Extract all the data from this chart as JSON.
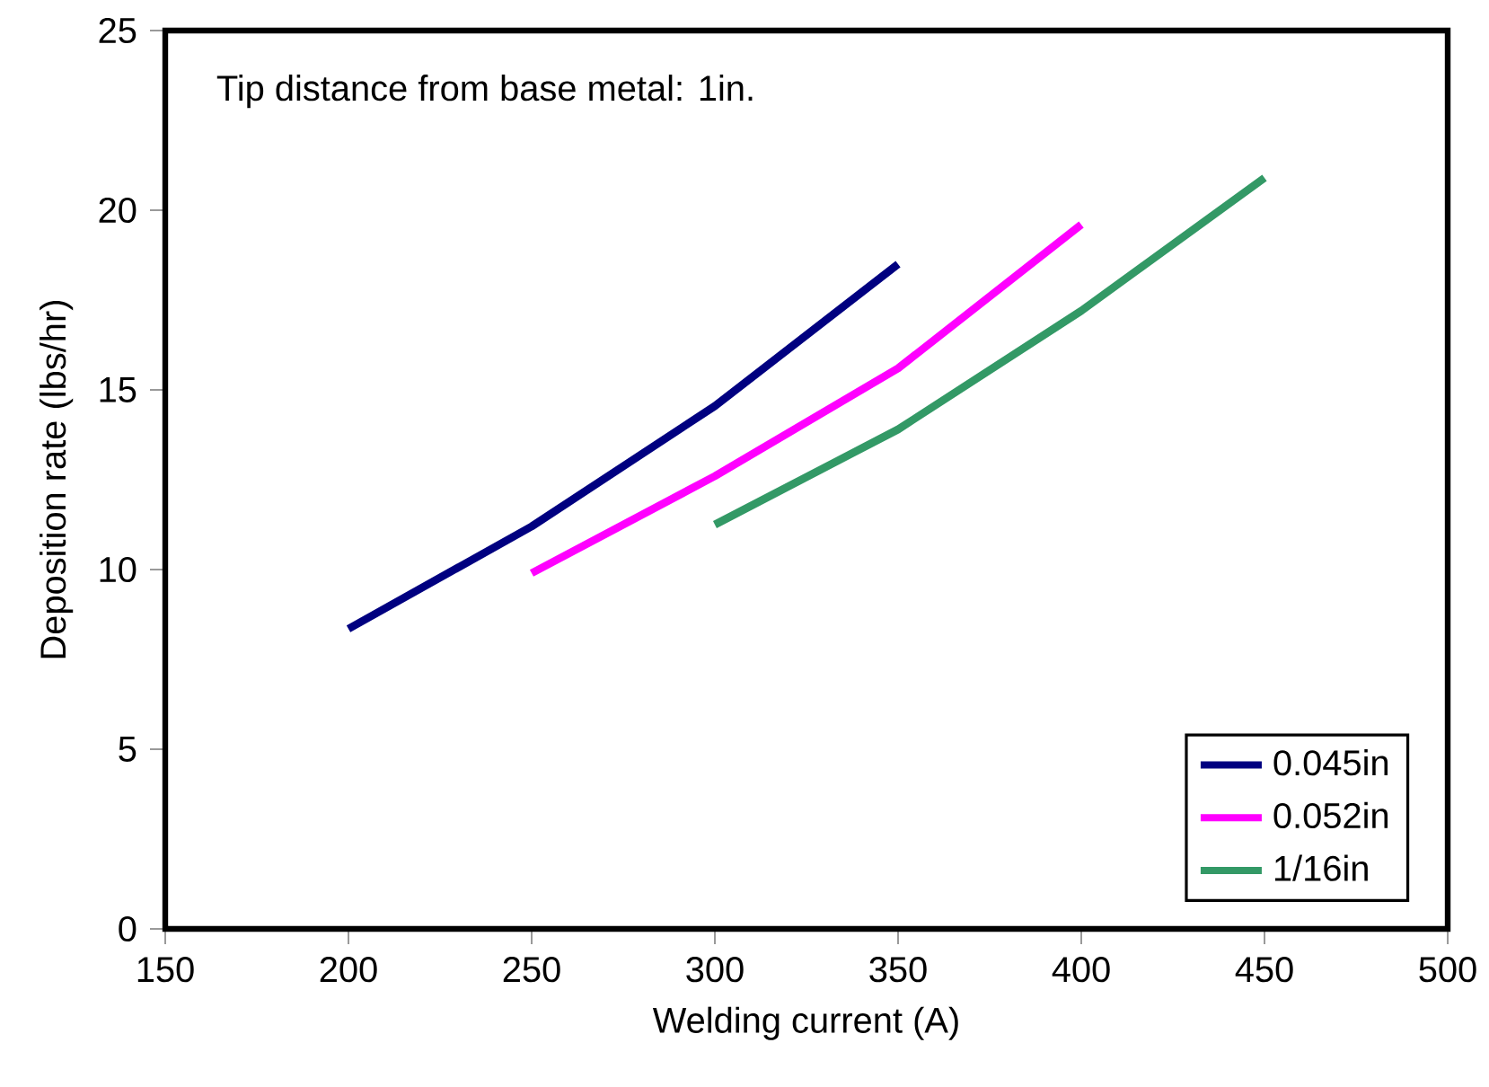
{
  "chart_data": {
    "type": "line",
    "xlabel": "Welding current (A)",
    "ylabel": "Deposition rate (lbs/hr)",
    "annotations": [
      "Tip distance from base metal: 1in."
    ],
    "xlim": [
      150,
      500
    ],
    "xticks": [
      150,
      200,
      250,
      300,
      350,
      400,
      450,
      500
    ],
    "ylim": [
      0,
      25
    ],
    "yticks": [
      0,
      5,
      10,
      15,
      20,
      25
    ],
    "legend": "bottom right",
    "marker": "none",
    "line_style": "solid",
    "grid": false,
    "series": [
      {
        "name": "0.045in",
        "color": "#000080",
        "x": [
          200,
          250,
          300,
          350
        ],
        "values": [
          8.35,
          11.2,
          14.55,
          18.5
        ]
      },
      {
        "name": "0.052in",
        "color": "#ff00ff",
        "x": [
          250,
          300,
          350,
          400
        ],
        "values": [
          9.9,
          12.6,
          15.6,
          19.6
        ]
      },
      {
        "name": "1/16in",
        "color": "#339966",
        "x": [
          300,
          350,
          400,
          450
        ],
        "values": [
          11.25,
          13.9,
          17.2,
          20.9
        ]
      }
    ]
  }
}
